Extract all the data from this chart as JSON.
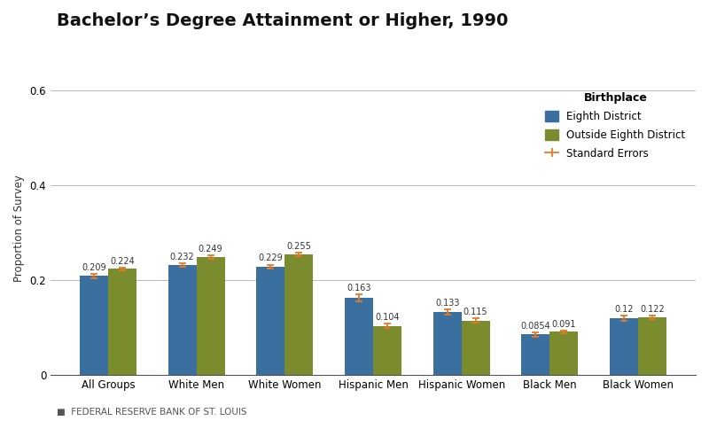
{
  "title": "Bachelor’s Degree Attainment or Higher, 1990",
  "ylabel": "Proportion of Survey",
  "categories": [
    "All Groups",
    "White Men",
    "White Women",
    "Hispanic Men",
    "Hispanic Women",
    "Black Men",
    "Black Women"
  ],
  "eighth_district": [
    0.209,
    0.232,
    0.229,
    0.163,
    0.133,
    0.0854,
    0.12
  ],
  "outside_eighth": [
    0.224,
    0.249,
    0.255,
    0.104,
    0.115,
    0.091,
    0.122
  ],
  "eighth_errors": [
    0.004,
    0.004,
    0.004,
    0.007,
    0.006,
    0.004,
    0.005
  ],
  "outside_errors": [
    0.003,
    0.004,
    0.004,
    0.005,
    0.005,
    0.003,
    0.004
  ],
  "eighth_labels": [
    "0.209",
    "0.232",
    "0.229",
    "0.163",
    "0.133",
    "0.0854",
    "0.12"
  ],
  "outside_labels": [
    "0.224",
    "0.249",
    "0.255",
    "0.104",
    "0.115",
    "0.091",
    "0.122"
  ],
  "bar_color_eighth": "#3B6FA0",
  "bar_color_outside": "#7A8C2E",
  "error_color": "#E87722",
  "ylim": [
    0,
    0.62
  ],
  "yticks": [
    0,
    0.2,
    0.4,
    0.6
  ],
  "ytick_labels": [
    "0",
    "0.2",
    "0.4",
    "0.6"
  ],
  "legend_title": "Birthplace",
  "legend_labels": [
    "Eighth District",
    "Outside Eighth District",
    "Standard Errors"
  ],
  "footer_square": "■",
  "footer_text": "FEDERAL RESERVE BANK OF ST. LOUIS",
  "bar_width": 0.32,
  "title_fontsize": 14,
  "axis_label_fontsize": 8.5,
  "tick_fontsize": 8.5,
  "value_fontsize": 7,
  "legend_fontsize": 8.5,
  "legend_title_fontsize": 9,
  "footer_fontsize": 7.5,
  "grid_color": "#BBBBBB",
  "spine_color": "#555555",
  "text_color": "#333333",
  "footer_color": "#555555"
}
